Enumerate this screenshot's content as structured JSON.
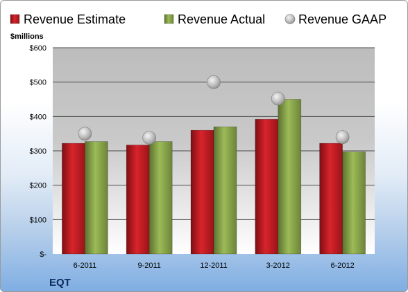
{
  "chart_data": {
    "type": "bar",
    "categories": [
      "6-2011",
      "9-2011",
      "12-2011",
      "3-2012",
      "6-2012"
    ],
    "series": [
      {
        "name": "Revenue Estimate",
        "kind": "bar",
        "color": "#cc1f26",
        "values": [
          322,
          317,
          360,
          392,
          322
        ]
      },
      {
        "name": "Revenue Actual",
        "kind": "bar",
        "color": "#8aa84a",
        "values": [
          327,
          327,
          370,
          450,
          297
        ]
      },
      {
        "name": "Revenue GAAP",
        "kind": "point",
        "color": "#b8b8b8",
        "values": [
          350,
          338,
          500,
          452,
          340
        ]
      }
    ],
    "ylabel": "$millions",
    "ylim": [
      0,
      600
    ],
    "yticks": [
      {
        "value": 0,
        "label": "$-"
      },
      {
        "value": 100,
        "label": "$100"
      },
      {
        "value": 200,
        "label": "$200"
      },
      {
        "value": 300,
        "label": "$300"
      },
      {
        "value": 400,
        "label": "$400"
      },
      {
        "value": 500,
        "label": "$500"
      },
      {
        "value": 600,
        "label": "$600"
      }
    ],
    "grid": true,
    "legend": "top",
    "ticker": "EQT"
  }
}
